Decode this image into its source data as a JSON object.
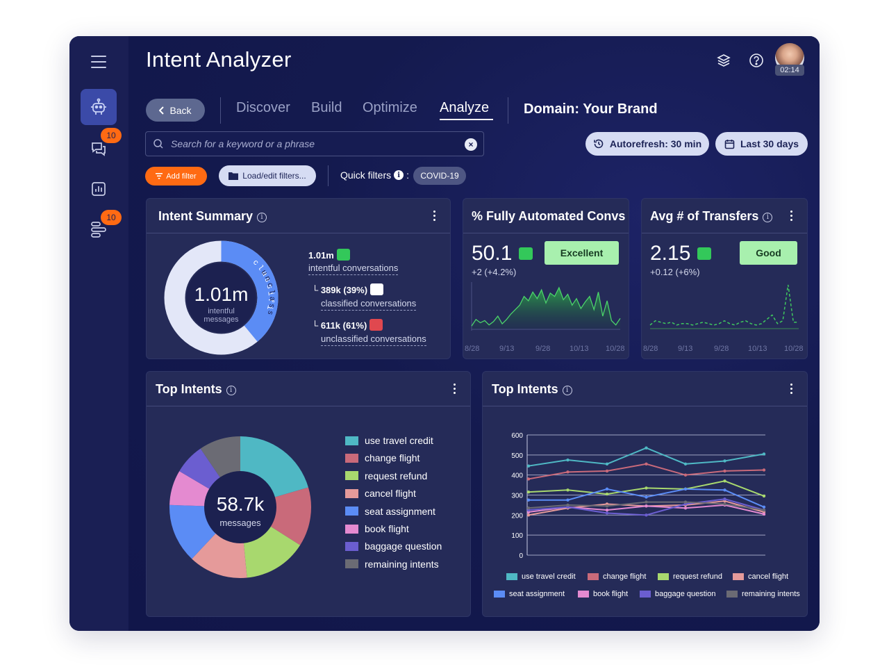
{
  "app": {
    "title": "Intent Analyzer",
    "timer": "02:14"
  },
  "sidebar": {
    "badges": [
      "10",
      "10"
    ]
  },
  "nav": {
    "back_label": "Back",
    "tabs": [
      "Discover",
      "Build",
      "Optimize",
      "Analyze"
    ],
    "active_tab": "Analyze",
    "domain": "Domain: Your Brand"
  },
  "search": {
    "placeholder": "Search for a keyword or a phrase"
  },
  "controls": {
    "autorefresh": "Autorefresh: 30 min",
    "date_range": "Last 30 days",
    "add_filter": "Add filter",
    "load_filters": "Load/edit filters...",
    "quick_filters": "Quick filters",
    "quick_filter_sep": ":",
    "quick_filter_chip": "COVID-19"
  },
  "intent_summary": {
    "title": "Intent Summary",
    "donut_center_value": "1.01m",
    "donut_center_label": "intentful messages",
    "arc_classified": "classified",
    "arc_unclassified": "unclassified",
    "classified_fraction": 0.39,
    "total_value": "1.01m",
    "total_label": "intentful conversations",
    "classified_value": "389k (39%)",
    "classified_label": "classified conversations",
    "unclassified_value": "611k (61%)",
    "unclassified_label": "unclassified conversations",
    "colors": {
      "classified": "#5b8cf5",
      "unclassified": "#e3e7f8",
      "hole": "#1c2150"
    }
  },
  "kpi_automated": {
    "title": "% Fully Automated Convs",
    "value": "50.1",
    "delta": "+2 (+4.2%)",
    "status": "Excellent",
    "x_labels": [
      "8/28",
      "9/13",
      "9/28",
      "10/13",
      "10/28"
    ]
  },
  "kpi_transfers": {
    "title": "Avg # of Transfers",
    "value": "2.15",
    "delta": "+0.12 (+6%)",
    "status": "Good",
    "x_labels": [
      "8/28",
      "9/13",
      "9/28",
      "10/13",
      "10/28"
    ]
  },
  "top_intents_pie": {
    "title": "Top Intents",
    "center_value": "58.7k",
    "center_label": "messages"
  },
  "top_intents_line": {
    "title": "Top Intents"
  },
  "intents": [
    {
      "name": "use travel credit",
      "color": "#4fb8c4"
    },
    {
      "name": "change flight",
      "color": "#c96a7a"
    },
    {
      "name": "request refund",
      "color": "#a8d86e"
    },
    {
      "name": "cancel flight",
      "color": "#e59a9a"
    },
    {
      "name": "seat assignment",
      "color": "#5b8cf5"
    },
    {
      "name": "book flight",
      "color": "#e48ad0"
    },
    {
      "name": "baggage question",
      "color": "#6b5ed0"
    },
    {
      "name": "remaining intents",
      "color": "#6b6b74"
    }
  ],
  "chart_data": [
    {
      "type": "pie",
      "categories": [
        "use travel credit",
        "change flight",
        "request refund",
        "cancel flight",
        "seat assignment",
        "book flight",
        "baggage question",
        "remaining intents"
      ],
      "values": [
        20.5,
        13.5,
        14.5,
        13.5,
        13.5,
        8,
        7,
        9.5
      ]
    },
    {
      "type": "line",
      "x": [
        1,
        2,
        3,
        4,
        5,
        6,
        7
      ],
      "ylim": [
        0,
        600
      ],
      "yticks": [
        0,
        100,
        200,
        300,
        400,
        500,
        600
      ],
      "series": [
        {
          "name": "use travel credit",
          "values": [
            445,
            475,
            455,
            535,
            455,
            470,
            505
          ]
        },
        {
          "name": "change flight",
          "values": [
            380,
            415,
            420,
            455,
            400,
            420,
            425
          ]
        },
        {
          "name": "request refund",
          "values": [
            315,
            325,
            305,
            335,
            330,
            370,
            295
          ]
        },
        {
          "name": "cancel flight",
          "values": [
            200,
            235,
            255,
            245,
            250,
            270,
            215
          ]
        },
        {
          "name": "seat assignment",
          "values": [
            275,
            275,
            330,
            290,
            330,
            325,
            240
          ]
        },
        {
          "name": "book flight",
          "values": [
            215,
            240,
            225,
            245,
            235,
            250,
            205
          ]
        },
        {
          "name": "baggage question",
          "values": [
            225,
            240,
            210,
            200,
            255,
            280,
            225
          ]
        },
        {
          "name": "remaining intents",
          "values": [
            235,
            250,
            245,
            265,
            265,
            255,
            225
          ]
        }
      ]
    },
    {
      "type": "area",
      "title": "% Fully Automated Convs",
      "x_labels": [
        "8/28",
        "9/13",
        "9/28",
        "10/13",
        "10/28"
      ],
      "values": [
        3,
        9,
        6,
        8,
        4,
        7,
        12,
        5,
        9,
        14,
        18,
        22,
        30,
        26,
        34,
        28,
        36,
        24,
        33,
        30,
        38,
        27,
        32,
        22,
        28,
        19,
        25,
        30,
        18,
        34,
        12,
        26,
        8,
        4,
        10
      ]
    },
    {
      "type": "line",
      "title": "Avg # of Transfers",
      "x_labels": [
        "8/28",
        "9/13",
        "9/28",
        "10/13",
        "10/28"
      ],
      "values": [
        2,
        5,
        4,
        3,
        4,
        2,
        3,
        3,
        2,
        3,
        4,
        3,
        2,
        3,
        5,
        3,
        2,
        4,
        5,
        3,
        2,
        3,
        6,
        9,
        3,
        5,
        30,
        4,
        4
      ]
    }
  ]
}
